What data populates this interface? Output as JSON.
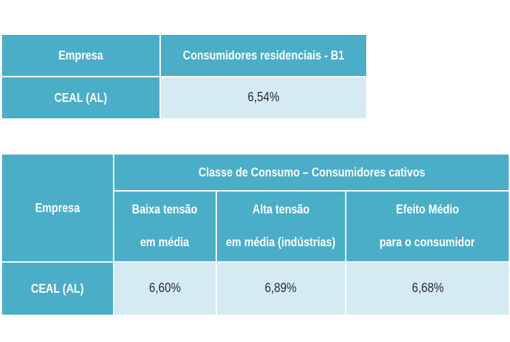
{
  "table1": {
    "headers": [
      "Empresa",
      "Consumidores residenciais - B1"
    ],
    "rows": [
      {
        "company": "CEAL (AL)",
        "value": "6,54%"
      }
    ]
  },
  "table2": {
    "company_header": "Empresa",
    "group_header": "Classe de Consumo – Consumidores cativos",
    "sub_headers": [
      {
        "line1": "Baixa tensão",
        "line2": "em média"
      },
      {
        "line1": "Alta tensão",
        "line2": "em média (indústrias)"
      },
      {
        "line1": "Efeito Médio",
        "line2": "para o consumidor"
      }
    ],
    "rows": [
      {
        "company": "CEAL (AL)",
        "values": [
          "6,60%",
          "6,89%",
          "6,68%"
        ]
      }
    ]
  }
}
